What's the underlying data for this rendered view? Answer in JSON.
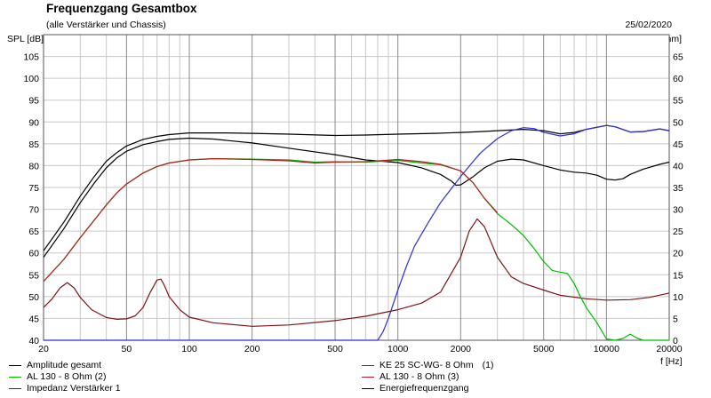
{
  "header": {
    "title": "Frequenzgang Gesamtbox",
    "subtitle": "(alle Verstärker und Chassis)",
    "date": "25/02/2020"
  },
  "chart_data": {
    "type": "line",
    "title": "Frequenzgang Gesamtbox",
    "subtitle": "(alle Verstärker und Chassis)",
    "xlabel": "f [Hz]",
    "ylabel": "SPL [dB]",
    "y2label": "Z [Ohm]",
    "xscale": "log",
    "xlim": [
      20,
      20000
    ],
    "ylim": [
      40,
      110
    ],
    "y2lim": [
      0,
      70
    ],
    "x_ticks": [
      "20",
      "50",
      "100",
      "200",
      "500",
      "1000",
      "2000",
      "5000",
      "10000",
      "20000"
    ],
    "x_tick_values": [
      20,
      50,
      100,
      200,
      500,
      1000,
      2000,
      5000,
      10000,
      20000
    ],
    "y_ticks": [
      "40",
      "45",
      "50",
      "55",
      "60",
      "65",
      "70",
      "75",
      "80",
      "85",
      "90",
      "95",
      "100",
      "105"
    ],
    "y2_ticks": [
      "0",
      "5",
      "10",
      "15",
      "20",
      "25",
      "30",
      "35",
      "40",
      "45",
      "50",
      "55",
      "60",
      "65"
    ],
    "grid": true,
    "legend_position": "bottom",
    "series": [
      {
        "name": "Amplitude gesamt",
        "axis": "left",
        "color": "#000000",
        "points": [
          [
            20,
            60.5
          ],
          [
            25,
            67
          ],
          [
            30,
            73
          ],
          [
            35,
            77.5
          ],
          [
            40,
            81
          ],
          [
            45,
            83
          ],
          [
            50,
            84.5
          ],
          [
            60,
            86
          ],
          [
            70,
            86.7
          ],
          [
            80,
            87.1
          ],
          [
            100,
            87.5
          ],
          [
            150,
            87.5
          ],
          [
            200,
            87.4
          ],
          [
            300,
            87.2
          ],
          [
            500,
            86.9
          ],
          [
            700,
            87
          ],
          [
            1000,
            87.2
          ],
          [
            1500,
            87.4
          ],
          [
            2000,
            87.6
          ],
          [
            2500,
            87.8
          ],
          [
            3000,
            88
          ],
          [
            4000,
            88.3
          ],
          [
            5000,
            88
          ],
          [
            6000,
            87.3
          ],
          [
            7000,
            87.6
          ],
          [
            8000,
            88.3
          ],
          [
            10000,
            89.2
          ],
          [
            11000,
            88.9
          ],
          [
            13000,
            87.7
          ],
          [
            15000,
            87.8
          ],
          [
            18000,
            88.4
          ],
          [
            20000,
            88
          ]
        ]
      },
      {
        "name": "AL 130 - 8 Ohm (2)",
        "axis": "left",
        "color": "#00bb00",
        "points": [
          [
            20,
            53.5
          ],
          [
            25,
            58.5
          ],
          [
            30,
            63.5
          ],
          [
            35,
            67.5
          ],
          [
            40,
            71
          ],
          [
            45,
            73.8
          ],
          [
            50,
            75.8
          ],
          [
            60,
            78.3
          ],
          [
            70,
            79.8
          ],
          [
            80,
            80.6
          ],
          [
            100,
            81.3
          ],
          [
            130,
            81.6
          ],
          [
            200,
            81.5
          ],
          [
            300,
            81.3
          ],
          [
            400,
            80.8
          ],
          [
            500,
            80.9
          ],
          [
            700,
            80.8
          ],
          [
            1000,
            81.2
          ],
          [
            1300,
            80.6
          ],
          [
            1600,
            80.2
          ],
          [
            2000,
            78.8
          ],
          [
            2300,
            76
          ],
          [
            2600,
            72.5
          ],
          [
            3000,
            69
          ],
          [
            3500,
            66.5
          ],
          [
            4000,
            64
          ],
          [
            4500,
            61
          ],
          [
            5000,
            58
          ],
          [
            5500,
            56
          ],
          [
            6000,
            55.6
          ],
          [
            6500,
            55.3
          ],
          [
            7000,
            53
          ],
          [
            7500,
            50
          ],
          [
            8000,
            47.5
          ],
          [
            9000,
            44
          ],
          [
            10000,
            40.3
          ],
          [
            11000,
            40
          ],
          [
            12000,
            40.4
          ],
          [
            13000,
            41.4
          ],
          [
            14000,
            40.5
          ],
          [
            15000,
            40
          ],
          [
            20000,
            40
          ]
        ]
      },
      {
        "name": "Impedanz Verstärker 1",
        "axis": "right",
        "color": "#7a1515",
        "points": [
          [
            20,
            7.5
          ],
          [
            22,
            9.5
          ],
          [
            24,
            12
          ],
          [
            26,
            13.2
          ],
          [
            28,
            12
          ],
          [
            30,
            9.8
          ],
          [
            34,
            7
          ],
          [
            40,
            5.2
          ],
          [
            45,
            4.8
          ],
          [
            50,
            4.9
          ],
          [
            55,
            5.6
          ],
          [
            60,
            7.5
          ],
          [
            65,
            11
          ],
          [
            70,
            13.8
          ],
          [
            73,
            14
          ],
          [
            76,
            12.5
          ],
          [
            80,
            10
          ],
          [
            90,
            7
          ],
          [
            100,
            5.3
          ],
          [
            130,
            4
          ],
          [
            200,
            3.2
          ],
          [
            300,
            3.5
          ],
          [
            500,
            4.5
          ],
          [
            700,
            5.5
          ],
          [
            1000,
            7
          ],
          [
            1300,
            8.5
          ],
          [
            1600,
            11
          ],
          [
            2000,
            19
          ],
          [
            2200,
            25
          ],
          [
            2400,
            27.8
          ],
          [
            2600,
            26
          ],
          [
            3000,
            19
          ],
          [
            3500,
            14.5
          ],
          [
            4000,
            13
          ],
          [
            5000,
            11.5
          ],
          [
            6000,
            10.3
          ],
          [
            8000,
            9.5
          ],
          [
            10000,
            9.2
          ],
          [
            13000,
            9.3
          ],
          [
            16000,
            9.8
          ],
          [
            20000,
            10.8
          ]
        ]
      },
      {
        "name": "KE 25 SC-WG- 8 Ohm",
        "index_label": "(1)",
        "axis": "left",
        "color": "#2e2ed6",
        "points": [
          [
            20,
            40
          ],
          [
            100,
            40
          ],
          [
            500,
            40
          ],
          [
            800,
            40
          ],
          [
            820,
            40.8
          ],
          [
            850,
            42
          ],
          [
            900,
            45
          ],
          [
            1000,
            51.5
          ],
          [
            1100,
            57
          ],
          [
            1200,
            61.5
          ],
          [
            1400,
            67
          ],
          [
            1600,
            71.5
          ],
          [
            2000,
            77.5
          ],
          [
            2300,
            81
          ],
          [
            2500,
            83
          ],
          [
            3000,
            86.2
          ],
          [
            3500,
            88
          ],
          [
            4000,
            88.7
          ],
          [
            4500,
            88.5
          ],
          [
            5000,
            87.6
          ],
          [
            6000,
            86.8
          ],
          [
            7000,
            87.3
          ],
          [
            8000,
            88.3
          ],
          [
            10000,
            89.2
          ],
          [
            11000,
            88.9
          ],
          [
            13000,
            87.7
          ],
          [
            15000,
            87.8
          ],
          [
            18000,
            88.4
          ],
          [
            20000,
            88
          ]
        ]
      },
      {
        "name": "AL 130 - 8 Ohm (3)",
        "axis": "left",
        "color": "#b02020",
        "points": [
          [
            20,
            53.5
          ],
          [
            25,
            58.5
          ],
          [
            30,
            63.5
          ],
          [
            35,
            67.5
          ],
          [
            40,
            71
          ],
          [
            45,
            73.8
          ],
          [
            50,
            75.8
          ],
          [
            60,
            78.3
          ],
          [
            70,
            79.8
          ],
          [
            80,
            80.6
          ],
          [
            100,
            81.3
          ],
          [
            130,
            81.6
          ],
          [
            200,
            81.4
          ],
          [
            300,
            81.1
          ],
          [
            400,
            80.6
          ],
          [
            500,
            80.8
          ],
          [
            700,
            80.9
          ],
          [
            1000,
            81.4
          ],
          [
            1300,
            80.9
          ],
          [
            1600,
            80.3
          ],
          [
            2000,
            78.8
          ],
          [
            2300,
            76
          ],
          [
            2600,
            72.5
          ],
          [
            3000,
            69.2
          ]
        ]
      },
      {
        "name": "Energiefrequenzgang",
        "axis": "left",
        "color": "#000000",
        "points": [
          [
            20,
            59
          ],
          [
            25,
            65.5
          ],
          [
            30,
            71.5
          ],
          [
            35,
            76
          ],
          [
            40,
            79.5
          ],
          [
            45,
            81.8
          ],
          [
            50,
            83.3
          ],
          [
            60,
            84.8
          ],
          [
            70,
            85.5
          ],
          [
            80,
            86
          ],
          [
            100,
            86.3
          ],
          [
            130,
            86.1
          ],
          [
            200,
            85.2
          ],
          [
            300,
            84
          ],
          [
            500,
            82.5
          ],
          [
            700,
            81.3
          ],
          [
            1000,
            80.7
          ],
          [
            1300,
            79.5
          ],
          [
            1600,
            78
          ],
          [
            1800,
            76.5
          ],
          [
            1900,
            75.5
          ],
          [
            2000,
            75.6
          ],
          [
            2300,
            77.5
          ],
          [
            2600,
            79.5
          ],
          [
            3000,
            81
          ],
          [
            3500,
            81.5
          ],
          [
            4000,
            81.3
          ],
          [
            5000,
            80
          ],
          [
            6000,
            79
          ],
          [
            7000,
            78.5
          ],
          [
            8000,
            78.3
          ],
          [
            9000,
            77.8
          ],
          [
            10000,
            76.9
          ],
          [
            11000,
            76.7
          ],
          [
            12000,
            77
          ],
          [
            13000,
            78
          ],
          [
            15000,
            79.2
          ],
          [
            18000,
            80.3
          ],
          [
            20000,
            80.8
          ]
        ]
      }
    ]
  },
  "legend": {
    "left": [
      {
        "label": "Amplitude gesamt",
        "color": "#000000"
      },
      {
        "label": "AL 130 - 8 Ohm (2)",
        "color": "#00bb00"
      },
      {
        "label": "Impedanz Verstärker 1",
        "color": "#7a1515"
      }
    ],
    "right": [
      {
        "label": "KE 25 SC-WG- 8 Ohm",
        "index": "(1)",
        "color": "#2e2ed6"
      },
      {
        "label": "AL 130 - 8 Ohm (3)",
        "color": "#b02020"
      },
      {
        "label": "Energiefrequenzgang",
        "color": "#000000"
      }
    ]
  }
}
